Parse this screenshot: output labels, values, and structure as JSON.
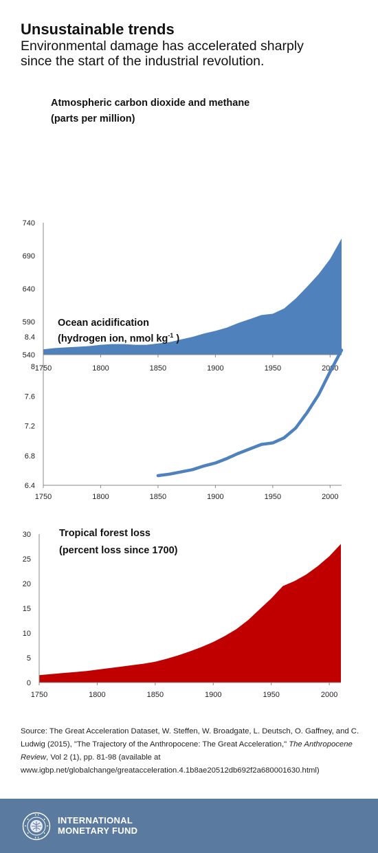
{
  "header": {
    "title": "Unsustainable trends",
    "subtitle_line1": "Environmental damage has accelerated sharply",
    "subtitle_line2": "since the start of the industrial revolution."
  },
  "chart_data": [
    {
      "type": "area",
      "title_line1": "Atmospheric carbon dioxide and methane",
      "title_line2": "(parts per million)",
      "color": "#4f81bd",
      "xlim": [
        1750,
        2010
      ],
      "ylim": [
        540,
        740
      ],
      "xticks": [
        "1750",
        "1800",
        "1850",
        "1900",
        "1950",
        "2000"
      ],
      "yticks": [
        "540",
        "590",
        "640",
        "690",
        "740"
      ],
      "x": [
        1750,
        1760,
        1770,
        1780,
        1790,
        1800,
        1810,
        1820,
        1830,
        1840,
        1850,
        1860,
        1870,
        1880,
        1890,
        1900,
        1910,
        1920,
        1930,
        1940,
        1950,
        1960,
        1970,
        1980,
        1990,
        2000,
        2010
      ],
      "y": [
        548,
        550,
        551,
        552,
        553,
        555,
        556,
        556,
        555,
        555,
        557,
        559,
        563,
        567,
        572,
        576,
        581,
        588,
        594,
        600,
        602,
        610,
        625,
        643,
        662,
        685,
        716
      ]
    },
    {
      "type": "line",
      "title_line1": "Ocean acidification",
      "title_line2_main": "(hydrogen ion, nmol kg",
      "title_line2_sup": "-1",
      "title_line2_end": " )",
      "color": "#4f81bd",
      "xlim": [
        1750,
        2010
      ],
      "ylim": [
        6.4,
        8.4
      ],
      "xticks": [
        "1750",
        "1800",
        "1850",
        "1900",
        "1950",
        "2000"
      ],
      "yticks": [
        "6.4",
        "6.8",
        "7.2",
        "7.6",
        "8",
        "8.4"
      ],
      "x": [
        1850,
        1860,
        1870,
        1880,
        1890,
        1900,
        1910,
        1920,
        1930,
        1940,
        1950,
        1960,
        1970,
        1980,
        1990,
        2000,
        2010
      ],
      "y": [
        6.53,
        6.55,
        6.58,
        6.61,
        6.66,
        6.7,
        6.76,
        6.83,
        6.89,
        6.95,
        6.97,
        7.04,
        7.17,
        7.38,
        7.62,
        7.93,
        8.22
      ]
    },
    {
      "type": "area",
      "title_line1": "Tropical forest loss",
      "title_line2": "(percent loss since 1700)",
      "color": "#c00000",
      "xlim": [
        1750,
        2010
      ],
      "ylim": [
        0,
        30
      ],
      "xticks": [
        "1750",
        "1800",
        "1850",
        "1900",
        "1950",
        "2000"
      ],
      "yticks": [
        "0",
        "5",
        "10",
        "15",
        "20",
        "25",
        "30"
      ],
      "x": [
        1750,
        1760,
        1770,
        1780,
        1790,
        1800,
        1810,
        1820,
        1830,
        1840,
        1850,
        1860,
        1870,
        1880,
        1890,
        1900,
        1910,
        1920,
        1930,
        1940,
        1950,
        1960,
        1970,
        1980,
        1990,
        2000,
        2010
      ],
      "y": [
        1.5,
        1.7,
        1.9,
        2.1,
        2.3,
        2.6,
        2.9,
        3.2,
        3.5,
        3.8,
        4.2,
        4.8,
        5.5,
        6.3,
        7.2,
        8.2,
        9.4,
        10.8,
        12.6,
        14.8,
        17.0,
        19.5,
        20.5,
        21.8,
        23.5,
        25.5,
        28.0
      ]
    }
  ],
  "source": {
    "text1": "Source: The Great Acceleration Dataset, W. Steffen, W. Broadgate, L. Deutsch, O. Gaffney, and C. Ludwig (2015), \"The Trajectory of the Anthropocene: The Great Acceleration,\" ",
    "italic": "The Anthropocene Review",
    "text2": ", Vol 2 (1), pp. 81-98 (available at www.igbp.net/globalchange/greatacceleration.4.1b8ae20512db692f2a680001630.html)"
  },
  "footer": {
    "org_line1": "INTERNATIONAL",
    "org_line2": "MONETARY FUND",
    "background": "#5b7aa0"
  }
}
